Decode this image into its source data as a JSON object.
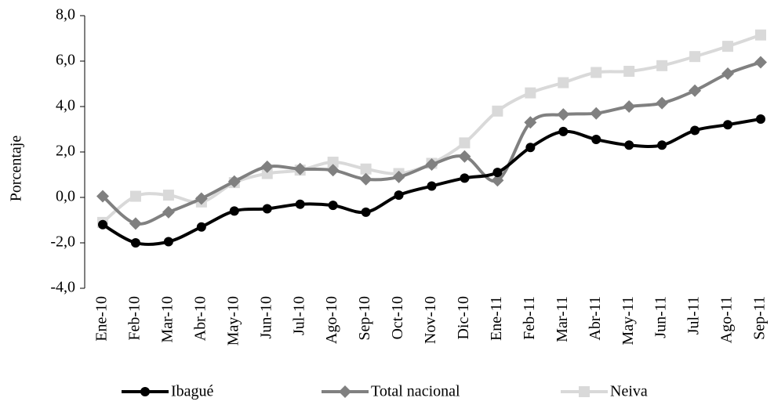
{
  "chart_data": {
    "type": "line",
    "y_label": "Porcentaje",
    "categories": [
      "Ene-10",
      "Feb-10",
      "Mar-10",
      "Abr-10",
      "May-10",
      "Jun-10",
      "Jul-10",
      "Ago-10",
      "Sep-10",
      "Oct-10",
      "Nov-10",
      "Dic-10",
      "Ene-11",
      "Feb-11",
      "Mar-11",
      "Abr-11",
      "May-11",
      "Jun-11",
      "Jul-11",
      "Ago-11",
      "Sep-11"
    ],
    "series": [
      {
        "name": "Ibagué",
        "color": "#000000",
        "marker": "circle",
        "values": [
          -1.2,
          -2.0,
          -1.95,
          -1.3,
          -0.6,
          -0.5,
          -0.3,
          -0.35,
          -0.65,
          0.1,
          0.5,
          0.85,
          1.1,
          2.2,
          2.9,
          2.55,
          2.3,
          2.3,
          2.95,
          3.2,
          3.45
        ]
      },
      {
        "name": "Total nacional",
        "color": "#808080",
        "marker": "diamond",
        "values": [
          0.05,
          -1.15,
          -0.65,
          -0.05,
          0.7,
          1.35,
          1.25,
          1.2,
          0.8,
          0.9,
          1.45,
          1.8,
          0.75,
          3.3,
          3.65,
          3.7,
          4.0,
          4.15,
          4.7,
          5.45,
          5.95
        ]
      },
      {
        "name": "Neiva",
        "color": "#d9d9d9",
        "marker": "square",
        "values": [
          -1.1,
          0.05,
          0.1,
          -0.2,
          0.65,
          1.05,
          1.2,
          1.55,
          1.25,
          1.05,
          1.5,
          2.4,
          3.8,
          4.6,
          5.05,
          5.5,
          5.55,
          5.8,
          6.2,
          6.65,
          7.15
        ]
      }
    ],
    "ylim": [
      -4,
      8
    ],
    "yticks": [
      {
        "value": -4,
        "label": "-4,0"
      },
      {
        "value": -2,
        "label": "-2,0"
      },
      {
        "value": 0,
        "label": "0,0"
      },
      {
        "value": 2,
        "label": "2,0"
      },
      {
        "value": 4,
        "label": "4,0"
      },
      {
        "value": 6,
        "label": "6,0"
      },
      {
        "value": 8,
        "label": "8,0"
      }
    ],
    "legend": "bottom"
  }
}
